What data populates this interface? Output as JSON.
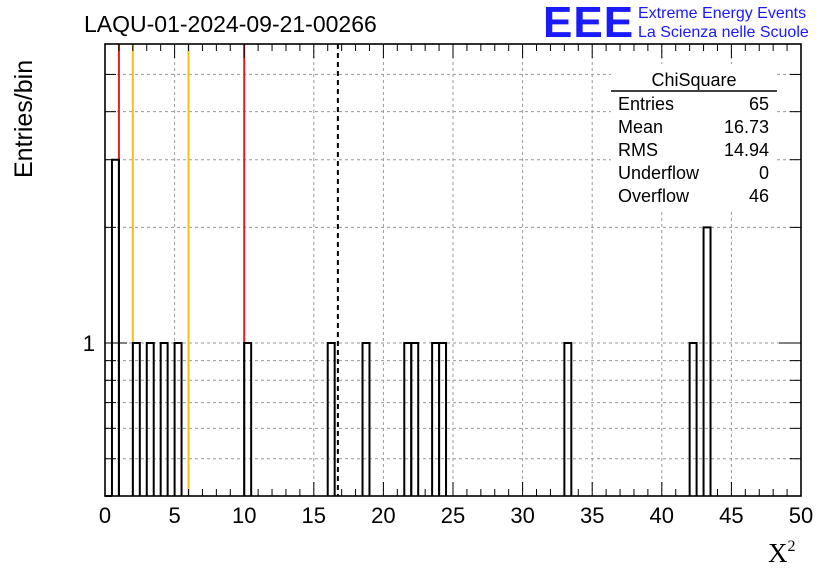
{
  "header": {
    "title": "LAQU-01-2024-09-21-00266",
    "logo_text": "EEE",
    "logo_line1": "Extreme Energy Events",
    "logo_line2": "La Scienza nelle Scuole"
  },
  "stats_box": {
    "title": "ChiSquare",
    "rows": [
      {
        "label": "Entries",
        "value": "65"
      },
      {
        "label": "Mean",
        "value": "16.73"
      },
      {
        "label": "RMS",
        "value": "14.94"
      },
      {
        "label": "Underflow",
        "value": "0"
      },
      {
        "label": "Overflow",
        "value": "46"
      }
    ]
  },
  "chart_data": {
    "type": "bar",
    "histogram": true,
    "title": "LAQU-01-2024-09-21-00266",
    "xlabel": "X²",
    "ylabel": "Entries/bin",
    "xlim": [
      0,
      50
    ],
    "ylim": [
      0.4,
      6
    ],
    "y_scale": "log",
    "grid": true,
    "bin_width": 0.5,
    "x_ticks": [
      "0",
      "5",
      "10",
      "15",
      "20",
      "25",
      "30",
      "35",
      "40",
      "45",
      "50"
    ],
    "y_tick_labels": [
      "1"
    ],
    "bins": [
      {
        "x0": 0.0,
        "x1": 0.5,
        "count": 0
      },
      {
        "x0": 0.5,
        "x1": 1.0,
        "count": 3
      },
      {
        "x0": 2.0,
        "x1": 2.5,
        "count": 1
      },
      {
        "x0": 3.0,
        "x1": 3.5,
        "count": 1
      },
      {
        "x0": 4.0,
        "x1": 4.5,
        "count": 1
      },
      {
        "x0": 5.0,
        "x1": 5.5,
        "count": 1
      },
      {
        "x0": 10.0,
        "x1": 10.5,
        "count": 1
      },
      {
        "x0": 16.0,
        "x1": 16.5,
        "count": 1
      },
      {
        "x0": 18.5,
        "x1": 19.0,
        "count": 1
      },
      {
        "x0": 21.5,
        "x1": 22.0,
        "count": 1
      },
      {
        "x0": 22.0,
        "x1": 22.5,
        "count": 1
      },
      {
        "x0": 23.5,
        "x1": 24.0,
        "count": 1
      },
      {
        "x0": 24.0,
        "x1": 24.5,
        "count": 1
      },
      {
        "x0": 33.0,
        "x1": 33.5,
        "count": 1
      },
      {
        "x0": 42.0,
        "x1": 42.5,
        "count": 1
      },
      {
        "x0": 43.0,
        "x1": 43.5,
        "count": 2
      }
    ],
    "reference_lines": [
      {
        "x": 1.0,
        "color": "#dd2222",
        "style": "solid"
      },
      {
        "x": 2.0,
        "color": "#f0c020",
        "style": "solid"
      },
      {
        "x": 6.0,
        "color": "#f0c020",
        "style": "solid"
      },
      {
        "x": 10.0,
        "color": "#dd2222",
        "style": "solid"
      },
      {
        "x": 16.73,
        "color": "#000000",
        "style": "dashed"
      }
    ]
  }
}
